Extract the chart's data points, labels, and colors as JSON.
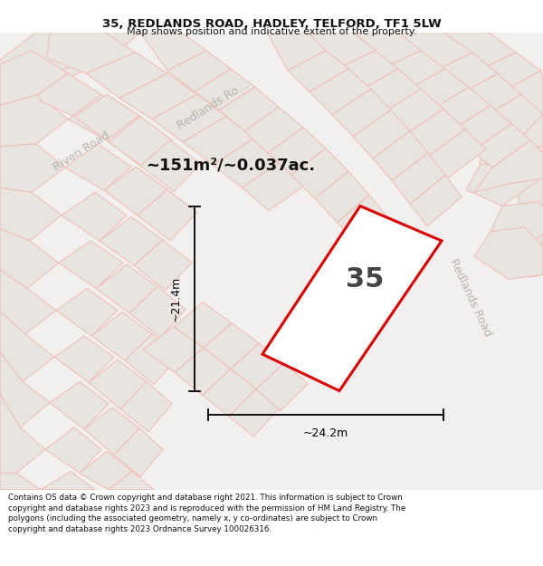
{
  "title": "35, REDLANDS ROAD, HADLEY, TELFORD, TF1 5LW",
  "subtitle": "Map shows position and indicative extent of the property.",
  "area_text": "~151m²/~0.037ac.",
  "property_number": "35",
  "dim_width": "~24.2m",
  "dim_height": "~21.4m",
  "footer": "Contains OS data © Crown copyright and database right 2021. This information is subject to Crown copyright and database rights 2023 and is reproduced with the permission of HM Land Registry. The polygons (including the associated geometry, namely x, y co-ordinates) are subject to Crown copyright and database rights 2023 Ordnance Survey 100026316.",
  "bg_color": "#f2f0ee",
  "block_fill": "#e8e4e0",
  "block_edge": "#d0c8c0",
  "plot_outline": "#f0c0b8",
  "highlight_stroke": "#dd0000",
  "highlight_fill": "#ffffff",
  "title_color": "#111111",
  "footer_color": "#111111",
  "road_label_color": "#b0a8a0",
  "dim_color": "#111111",
  "road_fill": "#f8f6f4",
  "road_edge": "#d8d0c8"
}
